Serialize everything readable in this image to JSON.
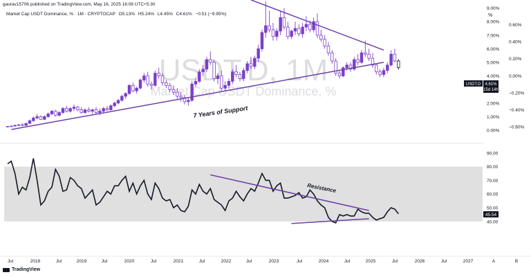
{
  "header": {
    "publisher_line": "gaurav15706 published on TradingView.com, May 16, 2025 16:08 UTC+5:30",
    "legend_title": "Market Cap USDT Dominance, % · 1M · CRYPTOCAP",
    "ohlc": {
      "o": "O5.13%",
      "h": "H5.24%",
      "l": "L4.45%",
      "c": "C4.61%",
      "chg": "−0.51 (−9.95%)"
    }
  },
  "watermark": {
    "line1": "USDT.D, 1M",
    "line2": "Market Cap USDT Dominance, %"
  },
  "annotations": {
    "support": "7 Years of Support",
    "resistance": "Resistance"
  },
  "price_axis": {
    "unit_symbol": "%",
    "left_labels": [
      "9.00%",
      "8.00%",
      "7.00%",
      "6.00%",
      "5.00%",
      "4.00%",
      "3.00%",
      "2.00%",
      "1.00%",
      "0.00%"
    ],
    "right_labels": [
      "0.60%",
      "0.40%",
      "0.20%",
      "0.00%",
      "−0.20%",
      "−0.40%",
      "−0.60%"
    ],
    "symbol_tag": "USDT.D",
    "last_value": "4.61%",
    "countdown": "15d 14h"
  },
  "rsi_axis": {
    "labels": [
      "90.00",
      "80.00",
      "70.00",
      "60.00",
      "50.00",
      "40.00"
    ],
    "last_value": "45.54"
  },
  "time_axis": {
    "labels": [
      "Jul",
      "2018",
      "Jul",
      "2019",
      "Jul",
      "2020",
      "Jul",
      "2021",
      "Jul",
      "2022",
      "Jul",
      "2023",
      "Jul",
      "2024",
      "Jul",
      "2025",
      "Jul",
      "2026",
      "Jul",
      "2027",
      "A",
      "B"
    ]
  },
  "branding": {
    "logo_text": "TradingView"
  },
  "colors": {
    "candle": "#7b3fc8",
    "candle_dark": "#131722",
    "trendline": "#6b3fa8",
    "rsi_line": "#131722",
    "rsi_band": "#e0e0e0",
    "last_tag": "#131722"
  },
  "chart_data": [
    {
      "type": "candlestick",
      "series_unit": "%",
      "start": "2017-07",
      "interval": "1M",
      "ylim": [
        0,
        9.8
      ],
      "candles": [
        [
          0.25,
          0.3,
          0.22,
          0.28
        ],
        [
          0.28,
          0.35,
          0.25,
          0.3
        ],
        [
          0.3,
          0.4,
          0.27,
          0.36
        ],
        [
          0.36,
          0.45,
          0.3,
          0.4
        ],
        [
          0.4,
          0.5,
          0.32,
          0.35
        ],
        [
          0.35,
          0.55,
          0.33,
          0.5
        ],
        [
          0.5,
          0.8,
          0.45,
          0.7
        ],
        [
          0.7,
          1.0,
          0.6,
          0.9
        ],
        [
          0.9,
          1.2,
          0.8,
          1.0
        ],
        [
          1.0,
          1.1,
          0.75,
          0.8
        ],
        [
          0.8,
          1.1,
          0.75,
          1.0
        ],
        [
          1.0,
          1.3,
          0.9,
          1.2
        ],
        [
          1.2,
          1.5,
          1.1,
          1.4
        ],
        [
          1.4,
          1.5,
          1.0,
          1.1
        ],
        [
          1.1,
          1.4,
          1.0,
          1.3
        ],
        [
          1.3,
          1.7,
          1.2,
          1.6
        ],
        [
          1.6,
          1.8,
          1.3,
          1.4
        ],
        [
          1.4,
          1.7,
          1.3,
          1.6
        ],
        [
          1.6,
          1.9,
          1.4,
          1.7
        ],
        [
          1.7,
          1.8,
          1.4,
          1.5
        ],
        [
          1.5,
          1.7,
          1.2,
          1.3
        ],
        [
          1.3,
          1.6,
          1.2,
          1.5
        ],
        [
          1.5,
          1.7,
          1.3,
          1.4
        ],
        [
          1.4,
          1.6,
          1.2,
          1.5
        ],
        [
          1.5,
          1.7,
          1.2,
          1.3
        ],
        [
          1.3,
          1.6,
          1.1,
          1.4
        ],
        [
          1.4,
          1.7,
          1.3,
          1.6
        ],
        [
          1.6,
          1.8,
          1.4,
          1.5
        ],
        [
          1.5,
          1.9,
          1.45,
          1.8
        ],
        [
          1.8,
          2.1,
          1.7,
          2.0
        ],
        [
          2.0,
          2.3,
          1.9,
          2.2
        ],
        [
          2.2,
          2.6,
          2.1,
          2.5
        ],
        [
          2.5,
          2.8,
          2.3,
          2.7
        ],
        [
          2.7,
          3.4,
          2.6,
          3.3
        ],
        [
          3.3,
          3.5,
          2.8,
          2.9
        ],
        [
          2.9,
          3.2,
          2.7,
          3.1
        ],
        [
          3.1,
          3.8,
          3.0,
          3.7
        ],
        [
          3.7,
          4.2,
          3.5,
          4.0
        ],
        [
          4.0,
          4.3,
          3.2,
          3.4
        ],
        [
          3.4,
          3.6,
          3.0,
          3.3
        ],
        [
          3.3,
          4.4,
          3.2,
          4.2
        ],
        [
          4.2,
          4.6,
          3.8,
          4.0
        ],
        [
          4.0,
          4.2,
          3.3,
          3.5
        ],
        [
          3.5,
          3.7,
          3.1,
          3.3
        ],
        [
          3.3,
          3.5,
          2.8,
          3.0
        ],
        [
          3.0,
          3.3,
          2.6,
          2.8
        ],
        [
          2.8,
          3.1,
          2.3,
          2.5
        ],
        [
          2.5,
          2.8,
          2.1,
          2.4
        ],
        [
          2.4,
          2.6,
          1.9,
          2.1
        ],
        [
          2.1,
          2.4,
          1.8,
          2.2
        ],
        [
          2.2,
          3.6,
          2.1,
          3.4
        ],
        [
          3.4,
          3.8,
          3.2,
          3.6
        ],
        [
          3.6,
          4.5,
          3.5,
          4.3
        ],
        [
          4.3,
          4.8,
          4.0,
          4.5
        ],
        [
          4.5,
          5.4,
          4.3,
          5.2
        ],
        [
          5.2,
          5.8,
          4.8,
          5.0
        ],
        [
          5.0,
          5.2,
          3.6,
          3.8
        ],
        [
          3.8,
          4.2,
          3.4,
          4.0
        ],
        [
          4.0,
          4.4,
          2.9,
          3.1
        ],
        [
          3.1,
          3.6,
          2.9,
          3.3
        ],
        [
          3.3,
          3.8,
          3.1,
          3.6
        ],
        [
          3.6,
          4.5,
          3.4,
          4.3
        ],
        [
          4.3,
          4.8,
          3.9,
          4.1
        ],
        [
          4.1,
          4.3,
          3.6,
          3.8
        ],
        [
          3.8,
          4.6,
          3.6,
          4.4
        ],
        [
          4.4,
          5.1,
          4.2,
          4.9
        ],
        [
          4.9,
          5.4,
          4.5,
          4.7
        ],
        [
          4.7,
          5.5,
          4.5,
          5.3
        ],
        [
          5.3,
          6.3,
          5.0,
          6.0
        ],
        [
          6.0,
          7.4,
          5.8,
          7.2
        ],
        [
          7.2,
          9.5,
          6.8,
          7.7
        ],
        [
          7.7,
          8.8,
          7.2,
          7.4
        ],
        [
          7.4,
          7.9,
          6.6,
          6.9
        ],
        [
          6.9,
          7.5,
          6.6,
          7.3
        ],
        [
          7.3,
          8.8,
          7.0,
          8.3
        ],
        [
          8.3,
          9.0,
          7.4,
          7.6
        ],
        [
          7.6,
          8.0,
          6.7,
          6.9
        ],
        [
          6.9,
          7.4,
          6.7,
          7.3
        ],
        [
          7.3,
          8.0,
          7.0,
          7.5
        ],
        [
          7.5,
          7.8,
          6.9,
          7.1
        ],
        [
          7.1,
          7.9,
          6.8,
          7.6
        ],
        [
          7.6,
          8.4,
          7.3,
          7.8
        ],
        [
          7.8,
          8.1,
          7.2,
          7.4
        ],
        [
          7.4,
          8.3,
          7.2,
          8.0
        ],
        [
          8.0,
          8.6,
          6.8,
          7.0
        ],
        [
          7.0,
          7.4,
          6.5,
          6.7
        ],
        [
          6.7,
          7.0,
          6.0,
          6.2
        ],
        [
          6.2,
          6.5,
          5.5,
          5.7
        ],
        [
          5.7,
          5.9,
          4.9,
          5.1
        ],
        [
          5.1,
          5.3,
          4.0,
          4.2
        ],
        [
          4.2,
          4.4,
          3.8,
          4.0
        ],
        [
          4.0,
          4.7,
          3.9,
          4.6
        ],
        [
          4.6,
          5.0,
          4.4,
          4.8
        ],
        [
          4.8,
          5.0,
          4.3,
          4.5
        ],
        [
          4.5,
          5.4,
          4.4,
          5.2
        ],
        [
          5.2,
          5.6,
          4.8,
          5.0
        ],
        [
          5.0,
          5.9,
          4.9,
          5.7
        ],
        [
          5.7,
          6.6,
          5.4,
          5.6
        ],
        [
          5.6,
          6.0,
          5.1,
          5.3
        ],
        [
          5.3,
          5.7,
          4.6,
          4.8
        ],
        [
          4.8,
          4.9,
          4.1,
          4.3
        ],
        [
          4.3,
          4.5,
          3.9,
          4.1
        ],
        [
          4.1,
          4.6,
          3.9,
          4.4
        ],
        [
          4.4,
          5.0,
          4.2,
          4.8
        ],
        [
          4.8,
          5.9,
          4.7,
          5.6
        ],
        [
          5.6,
          6.0,
          5.0,
          5.1
        ],
        [
          5.1,
          5.24,
          4.45,
          4.61
        ]
      ],
      "support_line": {
        "from": [
          "2017-08",
          0.05
        ],
        "to": [
          "2026-01",
          5.0
        ]
      },
      "resistance_line": {
        "from": [
          "2023-01",
          9.6
        ],
        "to": [
          "2026-01",
          5.9
        ]
      }
    },
    {
      "type": "line",
      "name": "RSI",
      "start": "2017-07",
      "interval": "1M",
      "ylim": [
        27,
        93
      ],
      "band": [
        40,
        80
      ],
      "values": [
        82,
        84,
        75,
        60,
        65,
        63,
        72,
        86,
        70,
        52,
        55,
        62,
        65,
        78,
        73,
        62,
        63,
        72,
        70,
        66,
        64,
        57,
        60,
        63,
        52,
        54,
        58,
        62,
        60,
        66,
        66,
        70,
        73,
        62,
        68,
        60,
        66,
        70,
        60,
        56,
        68,
        64,
        57,
        55,
        56,
        50,
        52,
        48,
        47,
        51,
        63,
        60,
        67,
        62,
        60,
        64,
        56,
        54,
        52,
        48,
        55,
        57,
        62,
        58,
        55,
        60,
        64,
        62,
        68,
        75,
        70,
        70,
        62,
        66,
        68,
        57,
        57,
        58,
        59,
        61,
        57,
        58,
        63,
        60,
        55,
        52,
        50,
        43,
        40,
        39,
        45,
        44,
        45,
        44,
        44,
        49,
        47,
        46,
        46,
        43,
        41,
        42,
        43,
        47,
        50,
        49,
        45.54
      ],
      "resistance_line": {
        "from": [
          "2022-02",
          74
        ],
        "to": [
          "2025-09",
          48
        ]
      },
      "support_line": {
        "from": [
          "2023-12",
          38.5
        ],
        "to": [
          "2025-09",
          42
        ]
      }
    }
  ]
}
